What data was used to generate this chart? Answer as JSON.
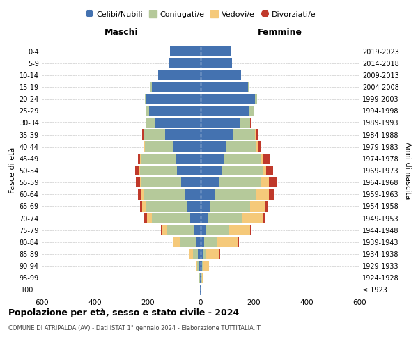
{
  "age_groups": [
    "100+",
    "95-99",
    "90-94",
    "85-89",
    "80-84",
    "75-79",
    "70-74",
    "65-69",
    "60-64",
    "55-59",
    "50-54",
    "45-49",
    "40-44",
    "35-39",
    "30-34",
    "25-29",
    "20-24",
    "15-19",
    "10-14",
    "5-9",
    "0-4"
  ],
  "birth_years": [
    "≤ 1923",
    "1924-1928",
    "1929-1933",
    "1934-1938",
    "1939-1943",
    "1944-1948",
    "1949-1953",
    "1954-1958",
    "1959-1963",
    "1964-1968",
    "1969-1973",
    "1974-1978",
    "1979-1983",
    "1984-1988",
    "1989-1993",
    "1994-1998",
    "1999-2003",
    "2004-2008",
    "2009-2013",
    "2014-2018",
    "2019-2023"
  ],
  "male": {
    "celibi": [
      2,
      3,
      5,
      10,
      18,
      25,
      40,
      50,
      60,
      75,
      90,
      95,
      105,
      135,
      170,
      195,
      205,
      185,
      160,
      120,
      115
    ],
    "coniugati": [
      1,
      3,
      8,
      20,
      60,
      105,
      145,
      155,
      155,
      150,
      140,
      130,
      105,
      80,
      35,
      10,
      5,
      5,
      0,
      0,
      0
    ],
    "vedovi": [
      0,
      1,
      5,
      15,
      25,
      15,
      18,
      15,
      8,
      5,
      3,
      3,
      2,
      1,
      1,
      1,
      0,
      0,
      0,
      0,
      0
    ],
    "divorziati": [
      0,
      0,
      1,
      1,
      2,
      5,
      10,
      10,
      15,
      15,
      15,
      10,
      5,
      5,
      2,
      1,
      0,
      0,
      0,
      0,
      0
    ]
  },
  "female": {
    "nubili": [
      1,
      2,
      4,
      8,
      12,
      18,
      28,
      38,
      52,
      68,
      82,
      88,
      98,
      122,
      148,
      185,
      205,
      178,
      152,
      118,
      115
    ],
    "coniugate": [
      0,
      2,
      5,
      12,
      48,
      88,
      128,
      148,
      158,
      162,
      152,
      138,
      112,
      82,
      38,
      14,
      7,
      4,
      0,
      0,
      0
    ],
    "vedove": [
      1,
      5,
      22,
      52,
      82,
      82,
      80,
      60,
      48,
      28,
      14,
      10,
      5,
      3,
      1,
      1,
      0,
      0,
      0,
      0,
      0
    ],
    "divorziate": [
      0,
      0,
      1,
      1,
      2,
      3,
      5,
      8,
      20,
      30,
      25,
      25,
      10,
      8,
      3,
      1,
      0,
      0,
      0,
      0,
      0
    ]
  },
  "colors": {
    "celibi": "#4472b0",
    "coniugati": "#b5c99a",
    "vedovi": "#f5c97a",
    "divorziati": "#c0392b"
  },
  "xlim": 600,
  "title": "Popolazione per età, sesso e stato civile - 2024",
  "subtitle": "COMUNE DI ATRIPALDA (AV) - Dati ISTAT 1° gennaio 2024 - Elaborazione TUTTITALIA.IT",
  "ylabel_left": "Fasce di età",
  "ylabel_right": "Anni di nascita",
  "xlabel_left": "Maschi",
  "xlabel_right": "Femmine",
  "legend_labels": [
    "Celibi/Nubili",
    "Coniugati/e",
    "Vedovi/e",
    "Divorziati/e"
  ]
}
